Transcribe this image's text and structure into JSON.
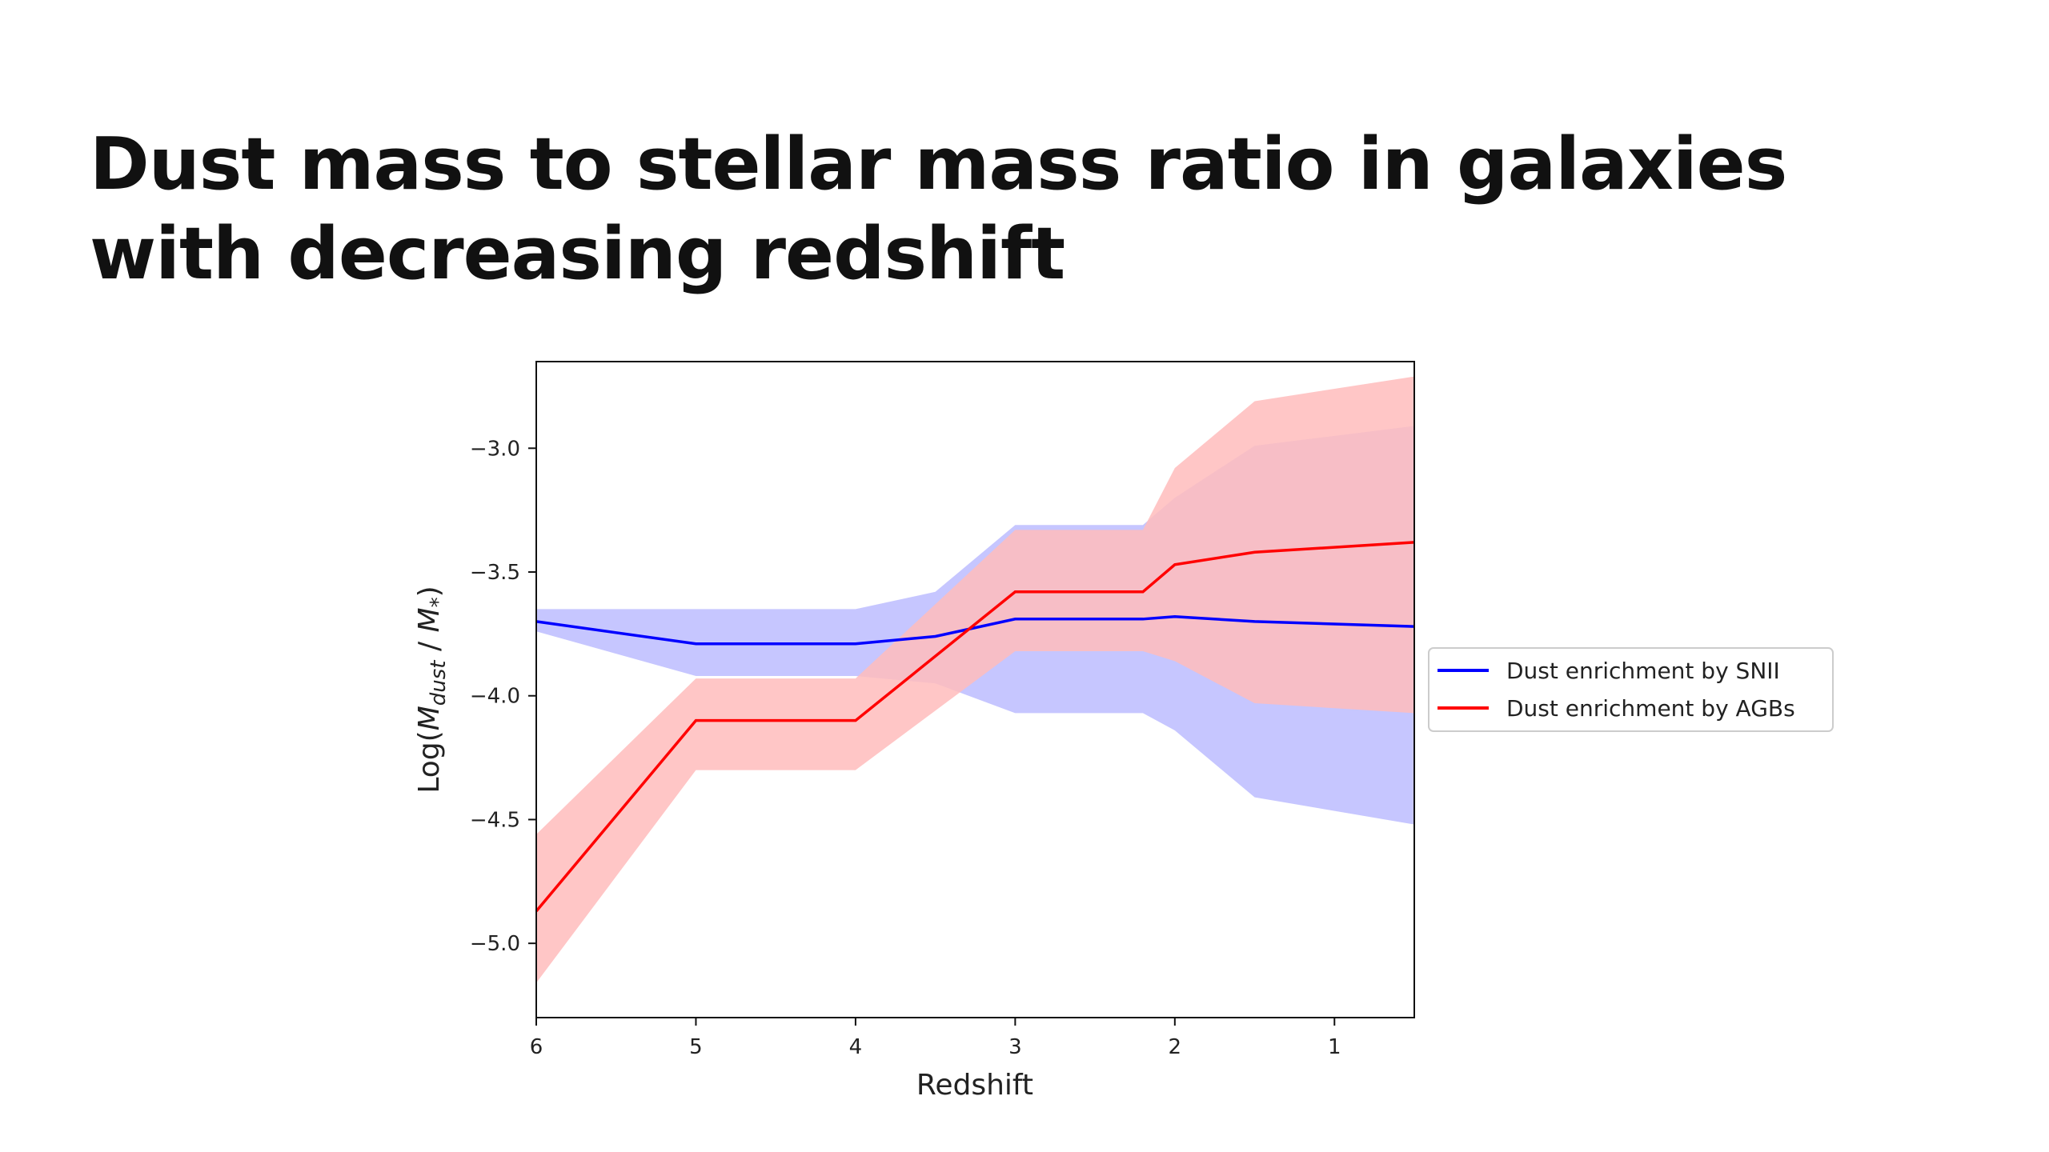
{
  "slide": {
    "title": "Dust mass to stellar mass ratio in galaxies with decreasing redshift"
  },
  "chart_data": {
    "type": "line",
    "title": "",
    "xlabel": "Redshift",
    "ylabel": "Log(M_dust / M_*)",
    "ylabel_parts": {
      "prefix": "Log(",
      "m1": "M",
      "sub1": "dust",
      "sep": " / ",
      "m2": "M",
      "sub2": "*",
      "suffix": ")"
    },
    "xlim": [
      6,
      0.5
    ],
    "ylim": [
      -5.3,
      -2.65
    ],
    "x_reversed": true,
    "x_ticks": [
      6,
      5,
      4,
      3,
      2,
      1
    ],
    "x_tick_labels": [
      "6",
      "5",
      "4",
      "3",
      "2",
      "1"
    ],
    "y_ticks": [
      -3.0,
      -3.5,
      -4.0,
      -4.5,
      -5.0
    ],
    "y_tick_labels": [
      "−3.0",
      "−3.5",
      "−4.0",
      "−4.5",
      "−5.0"
    ],
    "grid": false,
    "legend_position": "right-outside",
    "series": [
      {
        "name": "Dust enrichment by SNII",
        "color": "#0000ff",
        "band_color": "#bcbcff",
        "x": [
          6,
          5,
          4,
          3.5,
          3,
          2.2,
          2,
          1.5,
          0.5
        ],
        "y": [
          -3.7,
          -3.79,
          -3.79,
          -3.76,
          -3.69,
          -3.69,
          -3.68,
          -3.7,
          -3.72
        ],
        "y_upper": [
          -3.65,
          -3.65,
          -3.65,
          -3.58,
          -3.31,
          -3.31,
          -3.2,
          -2.99,
          -2.91
        ],
        "y_lower": [
          -3.74,
          -3.92,
          -3.92,
          -3.95,
          -4.07,
          -4.07,
          -4.14,
          -4.41,
          -4.52
        ]
      },
      {
        "name": "Dust enrichment by AGBs",
        "color": "#ff0000",
        "band_color": "#ffbcbc",
        "x": [
          6,
          5,
          4,
          3,
          2.2,
          2,
          1.5,
          0.5
        ],
        "y": [
          -4.87,
          -4.1,
          -4.1,
          -3.58,
          -3.58,
          -3.47,
          -3.42,
          -3.38
        ],
        "y_upper": [
          -4.56,
          -3.93,
          -3.93,
          -3.33,
          -3.33,
          -3.08,
          -2.81,
          -2.71
        ],
        "y_lower": [
          -5.16,
          -4.3,
          -4.3,
          -3.82,
          -3.82,
          -3.86,
          -4.03,
          -4.07
        ]
      }
    ]
  }
}
